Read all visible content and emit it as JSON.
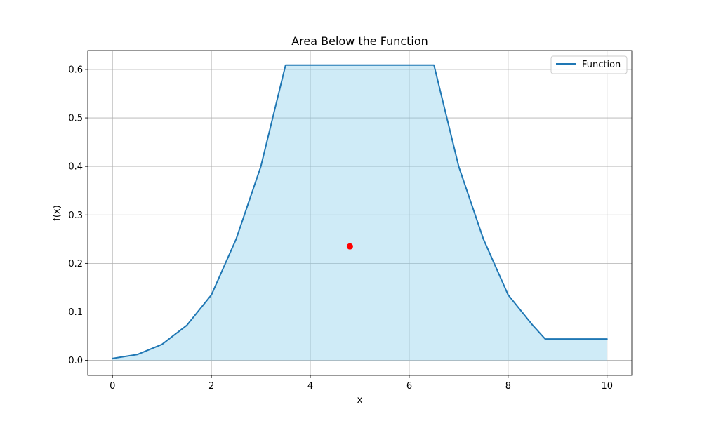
{
  "chart_data": {
    "type": "area",
    "title": "Area Below the Function",
    "xlabel": "x",
    "ylabel": "f(x)",
    "xlim": [
      -0.5,
      10.5
    ],
    "ylim": [
      -0.031,
      0.639
    ],
    "xticks": [
      0,
      2,
      4,
      6,
      8,
      10
    ],
    "yticks": [
      0.0,
      0.1,
      0.2,
      0.3,
      0.4,
      0.5,
      0.6
    ],
    "xtick_labels": [
      "0",
      "2",
      "4",
      "6",
      "8",
      "10"
    ],
    "ytick_labels": [
      "0.0",
      "0.1",
      "0.2",
      "0.3",
      "0.4",
      "0.5",
      "0.6"
    ],
    "grid": true,
    "legend": {
      "location": "top-right",
      "entries": [
        "Function"
      ]
    },
    "series": [
      {
        "name": "Function",
        "color": "#1f77b4",
        "fill_color": "#87ceeb",
        "fill_opacity": 0.4,
        "x": [
          0,
          0.5,
          1.0,
          1.5,
          2.0,
          2.5,
          3.0,
          3.5,
          4.0,
          5.0,
          6.0,
          6.5,
          7.0,
          7.5,
          8.0,
          8.5,
          8.75,
          9.0,
          9.5,
          10.0
        ],
        "y": [
          0.004,
          0.012,
          0.033,
          0.072,
          0.135,
          0.25,
          0.4,
          0.609,
          0.609,
          0.609,
          0.609,
          0.609,
          0.4,
          0.25,
          0.135,
          0.072,
          0.044,
          0.044,
          0.044,
          0.044
        ]
      }
    ],
    "points": [
      {
        "x": 4.8,
        "y": 0.235,
        "color": "#ff0000"
      }
    ]
  }
}
